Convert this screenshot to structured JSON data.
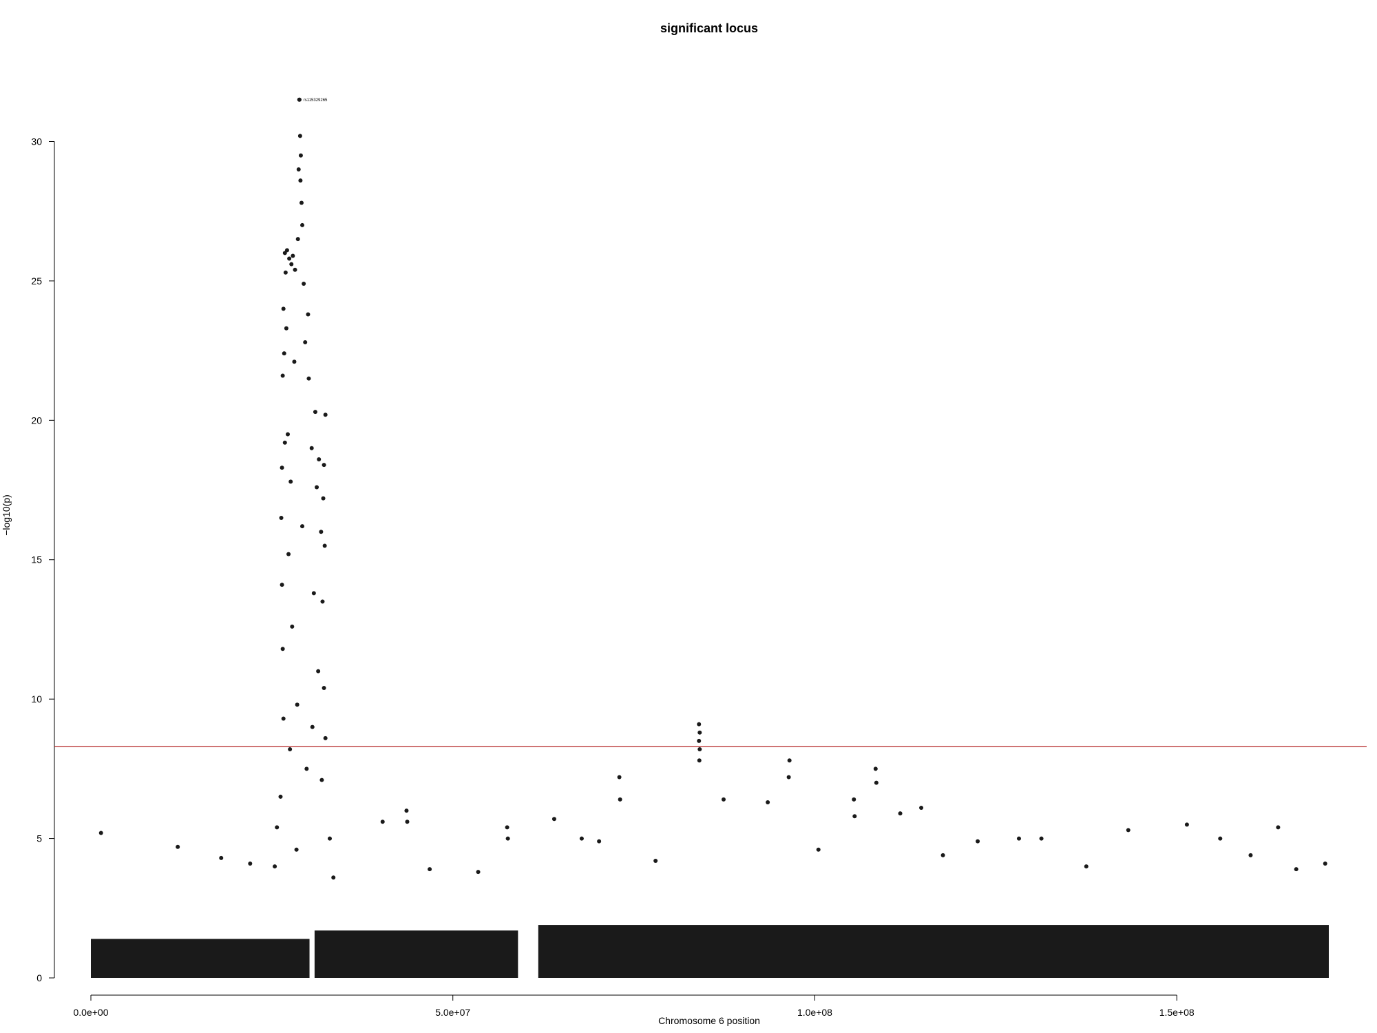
{
  "chart_data": {
    "type": "scatter",
    "title": "significant locus",
    "xlabel": "Chromosome 6 position",
    "ylabel": "−log10(p)",
    "xlim": [
      0,
      171000000
    ],
    "ylim": [
      0,
      31
    ],
    "x_ticks": [
      {
        "value": 0,
        "label": "0.0e+00"
      },
      {
        "value": 50000000,
        "label": "5.0e+07"
      },
      {
        "value": 100000000,
        "label": "1.0e+08"
      },
      {
        "value": 150000000,
        "label": "1.5e+08"
      }
    ],
    "y_ticks": [
      {
        "value": 0,
        "label": "0"
      },
      {
        "value": 5,
        "label": "5"
      },
      {
        "value": 10,
        "label": "10"
      },
      {
        "value": 15,
        "label": "15"
      },
      {
        "value": 20,
        "label": "20"
      },
      {
        "value": 25,
        "label": "25"
      },
      {
        "value": 30,
        "label": "30"
      }
    ],
    "threshold": {
      "value": 8.3,
      "color": "#b22222"
    },
    "point_color": "#1a1a1a",
    "grid": false,
    "legend": "none",
    "annotation": {
      "label": "rs115329265",
      "x": 28800000,
      "y": 31.5
    },
    "points": [
      [
        28800000,
        31.5
      ],
      [
        28900000,
        30.2
      ],
      [
        29000000,
        29.5
      ],
      [
        28700000,
        29.0
      ],
      [
        28950000,
        28.6
      ],
      [
        29100000,
        27.8
      ],
      [
        29200000,
        27.0
      ],
      [
        28600000,
        26.5
      ],
      [
        26800000,
        26.0
      ],
      [
        27100000,
        26.1
      ],
      [
        27400000,
        25.8
      ],
      [
        27700000,
        25.6
      ],
      [
        27900000,
        25.9
      ],
      [
        28200000,
        25.4
      ],
      [
        26900000,
        25.3
      ],
      [
        29400000,
        24.9
      ],
      [
        30000000,
        23.8
      ],
      [
        26600000,
        24.0
      ],
      [
        27000000,
        23.3
      ],
      [
        29600000,
        22.8
      ],
      [
        26700000,
        22.4
      ],
      [
        28100000,
        22.1
      ],
      [
        26500000,
        21.6
      ],
      [
        30100000,
        21.5
      ],
      [
        31000000,
        20.3
      ],
      [
        32400000,
        20.2
      ],
      [
        27200000,
        19.5
      ],
      [
        26800000,
        19.2
      ],
      [
        30500000,
        19.0
      ],
      [
        31500000,
        18.6
      ],
      [
        32200000,
        18.4
      ],
      [
        26400000,
        18.3
      ],
      [
        27600000,
        17.8
      ],
      [
        31200000,
        17.6
      ],
      [
        32100000,
        17.2
      ],
      [
        26300000,
        16.5
      ],
      [
        29200000,
        16.2
      ],
      [
        31800000,
        16.0
      ],
      [
        32300000,
        15.5
      ],
      [
        27300000,
        15.2
      ],
      [
        26400000,
        14.1
      ],
      [
        30800000,
        13.8
      ],
      [
        32000000,
        13.5
      ],
      [
        27800000,
        12.6
      ],
      [
        26500000,
        11.8
      ],
      [
        31400000,
        11.0
      ],
      [
        32200000,
        10.4
      ],
      [
        28500000,
        9.8
      ],
      [
        26600000,
        9.3
      ],
      [
        30600000,
        9.0
      ],
      [
        32400000,
        8.6
      ],
      [
        27500000,
        8.2
      ],
      [
        29800000,
        7.5
      ],
      [
        31900000,
        7.1
      ],
      [
        26200000,
        6.5
      ],
      [
        25700000,
        5.4
      ],
      [
        33000000,
        5.0
      ],
      [
        28400000,
        4.6
      ],
      [
        25400000,
        4.0
      ],
      [
        33500000,
        3.6
      ],
      [
        84000000,
        9.1
      ],
      [
        84100000,
        8.8
      ],
      [
        84000000,
        8.5
      ],
      [
        84100000,
        8.2
      ],
      [
        84050000,
        7.8
      ],
      [
        96500000,
        7.8
      ],
      [
        96400000,
        7.2
      ],
      [
        108400000,
        7.5
      ],
      [
        108500000,
        7.0
      ],
      [
        73000000,
        7.2
      ],
      [
        73100000,
        6.4
      ],
      [
        114700000,
        6.1
      ],
      [
        105400000,
        6.4
      ],
      [
        105500000,
        5.8
      ],
      [
        111800000,
        5.9
      ],
      [
        43600000,
        6.0
      ],
      [
        43700000,
        5.6
      ],
      [
        40300000,
        5.6
      ],
      [
        57500000,
        5.4
      ],
      [
        57600000,
        5.0
      ],
      [
        12000000,
        4.7
      ],
      [
        1400000,
        5.2
      ],
      [
        64000000,
        5.7
      ],
      [
        67800000,
        5.0
      ],
      [
        70200000,
        4.9
      ],
      [
        87400000,
        6.4
      ],
      [
        93500000,
        6.3
      ],
      [
        122500000,
        4.9
      ],
      [
        128200000,
        5.0
      ],
      [
        131300000,
        5.0
      ],
      [
        143300000,
        5.3
      ],
      [
        151400000,
        5.5
      ],
      [
        156000000,
        5.0
      ],
      [
        164000000,
        5.4
      ],
      [
        170500000,
        4.1
      ],
      [
        18000000,
        4.3
      ],
      [
        22000000,
        4.1
      ],
      [
        46800000,
        3.9
      ],
      [
        53500000,
        3.8
      ],
      [
        78000000,
        4.2
      ],
      [
        100500000,
        4.6
      ],
      [
        117700000,
        4.4
      ],
      [
        137500000,
        4.0
      ],
      [
        160200000,
        4.4
      ],
      [
        166500000,
        3.9
      ]
    ],
    "baseline_segments": [
      {
        "x0": 0,
        "x1": 30200000,
        "height": 1.4
      },
      {
        "x0": 30900000,
        "x1": 59000000,
        "height": 1.7
      },
      {
        "x0": 61800000,
        "x1": 171000000,
        "height": 1.9
      }
    ]
  }
}
